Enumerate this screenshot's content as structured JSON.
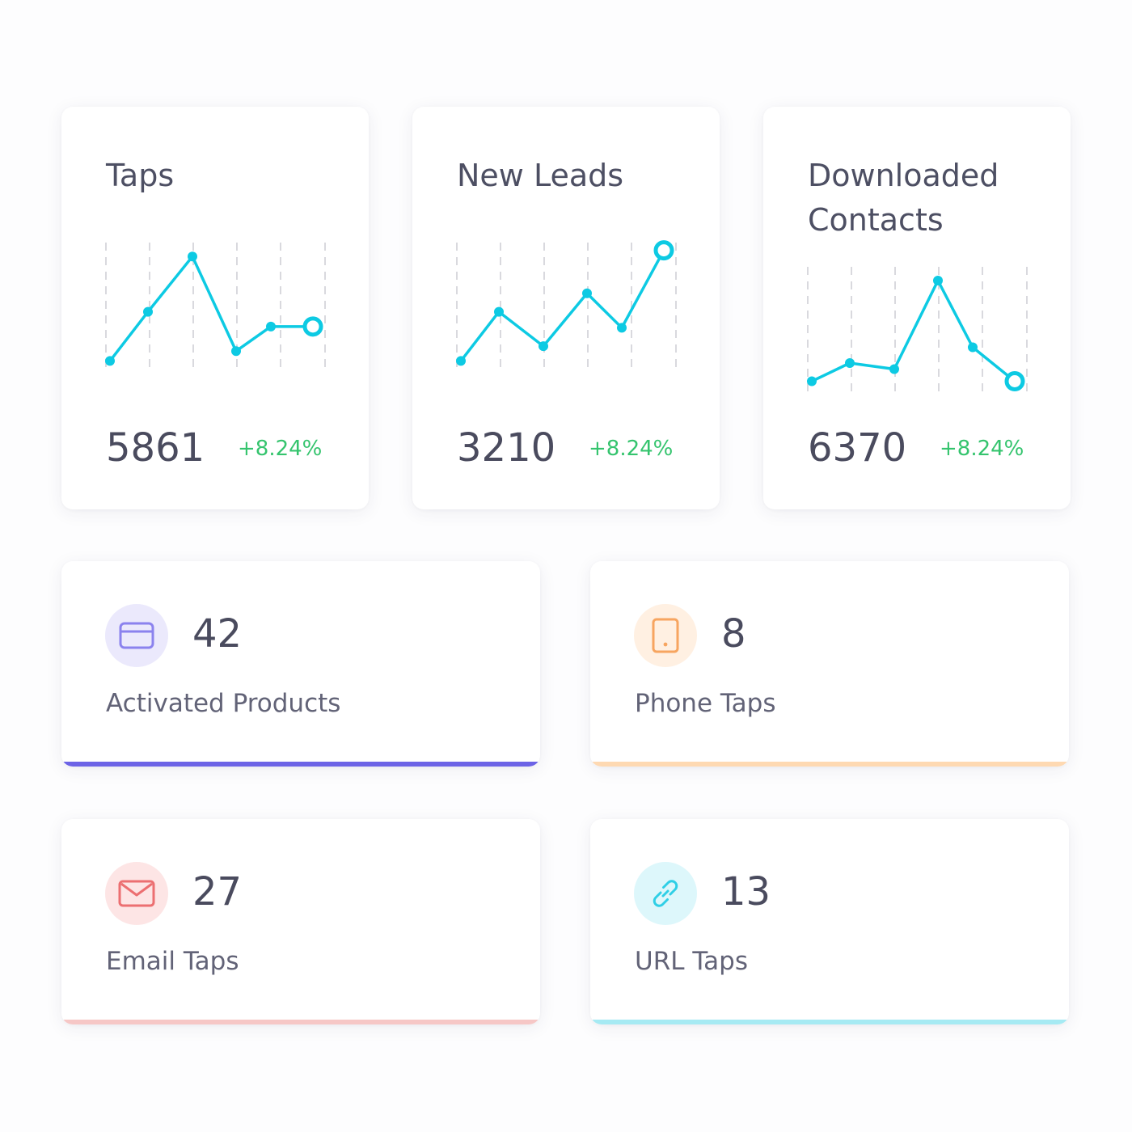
{
  "metrics": [
    {
      "title": "Taps",
      "value": "5861",
      "change": "+8.24%",
      "chart_points": [
        0.05,
        0.45,
        0.9,
        0.13,
        0.33,
        0.33
      ]
    },
    {
      "title": "New Leads",
      "value": "3210",
      "change": "+8.24%",
      "chart_points": [
        0.05,
        0.45,
        0.17,
        0.6,
        0.32,
        0.95
      ]
    },
    {
      "title": "Downloaded Contacts",
      "value": "6370",
      "change": "+8.24%",
      "chart_points": [
        0.07,
        0.22,
        0.17,
        0.9,
        0.35,
        0.07
      ]
    }
  ],
  "stats": [
    {
      "value": "42",
      "label": "Activated Products",
      "icon": "card-icon"
    },
    {
      "value": "8",
      "label": "Phone Taps",
      "icon": "phone-icon"
    },
    {
      "value": "27",
      "label": "Email Taps",
      "icon": "mail-icon"
    },
    {
      "value": "13",
      "label": "URL Taps",
      "icon": "link-icon"
    }
  ],
  "colors": {
    "line": "#0dcae3",
    "gridline": "#d9d9de",
    "positive_change": "#35c46e",
    "activated_accent": "#6c63e6",
    "activated_icon_bg": "#ebe9fc",
    "activated_icon": "#8b82ee",
    "phone_accent": "#fed9b2",
    "phone_icon_bg": "#fff0e2",
    "phone_icon": "#f7a560",
    "email_accent": "#f6c7c6",
    "email_icon_bg": "#fde5e5",
    "email_icon": "#ec6f71",
    "url_accent": "#a6eaf3",
    "url_icon_bg": "#ddf7fb",
    "url_icon": "#2fcfe6"
  }
}
